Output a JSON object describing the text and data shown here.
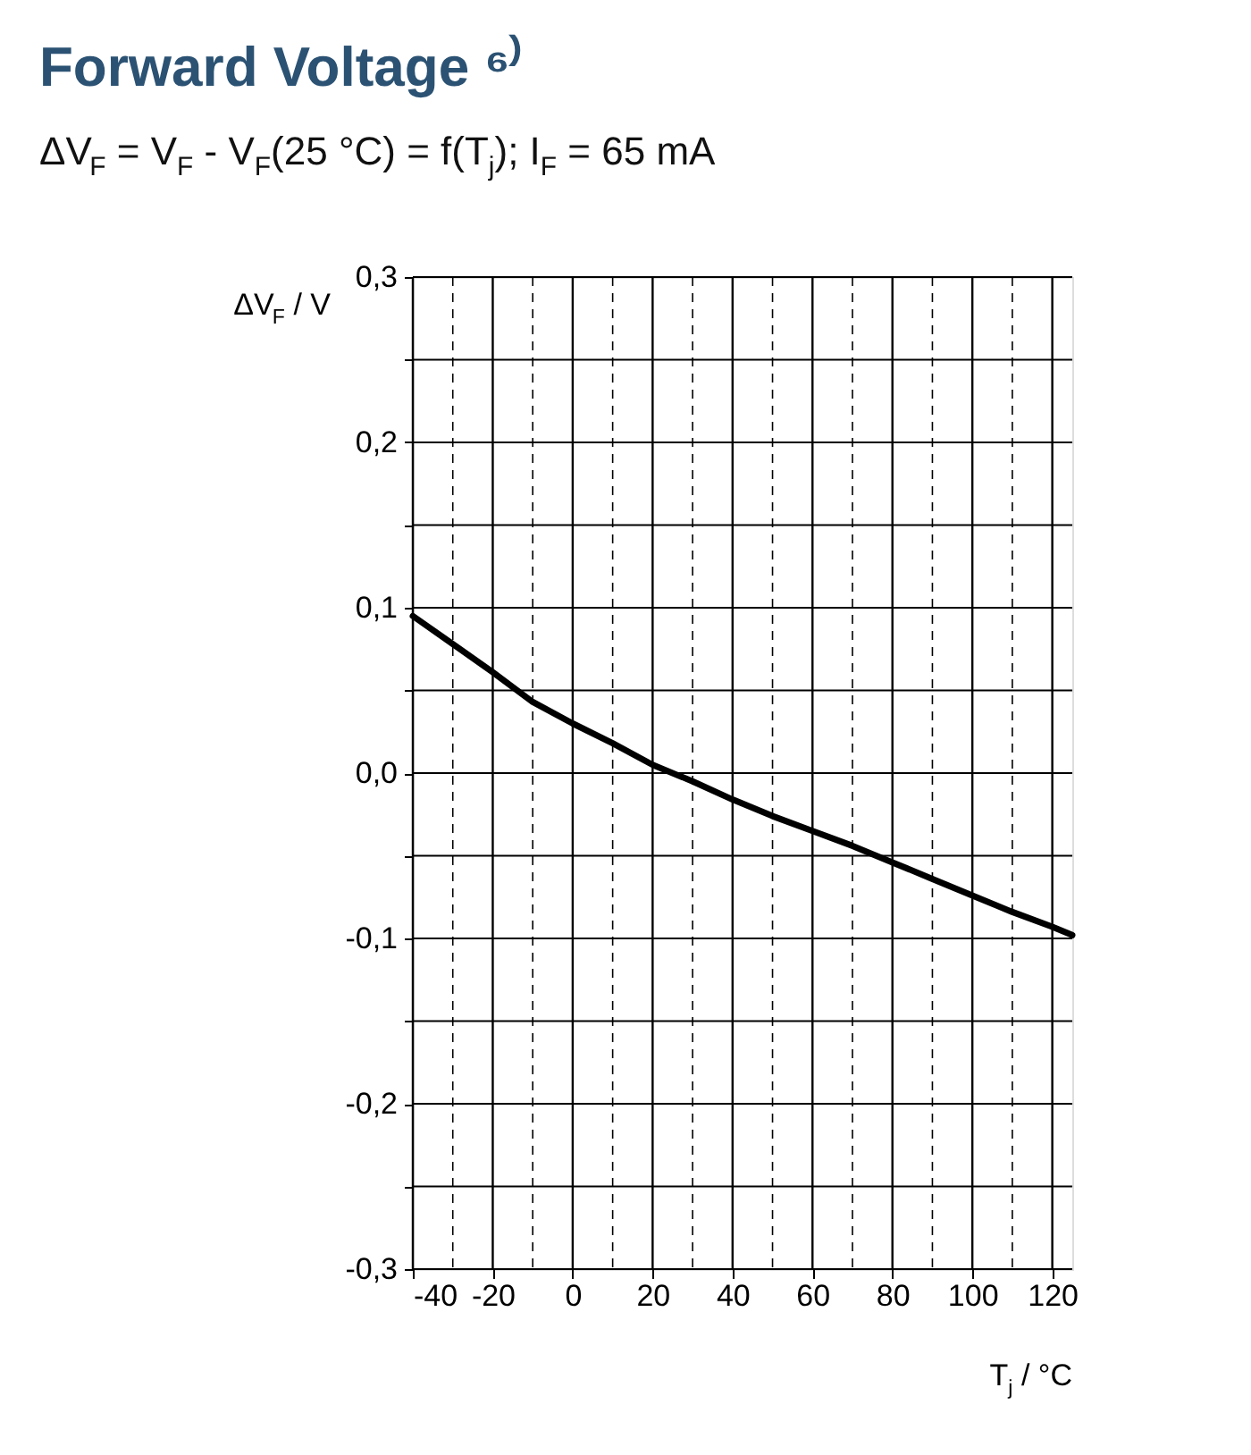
{
  "chart_data": {
    "type": "line",
    "title": "Forward Voltage ⁶⁾",
    "subtitle": "ΔV$_{F}$ = V$_{F}$ - V$_{F}$(25 °C) = f(T$_{j}$); I$_{F}$ = 65 mA",
    "xlabel": "T$_{j}$ / °C",
    "ylabel": "ΔV$_{F}$ / V",
    "x": [
      -40,
      -30,
      -20,
      -10,
      0,
      10,
      20,
      30,
      40,
      50,
      60,
      70,
      80,
      90,
      100,
      110,
      120,
      125
    ],
    "series": [
      {
        "color": "#000000",
        "values": [
          0.095,
          0.078,
          0.061,
          0.043,
          0.03,
          0.018,
          0.005,
          -0.005,
          -0.016,
          -0.026,
          -0.035,
          -0.044,
          -0.054,
          -0.064,
          -0.074,
          -0.084,
          -0.093,
          -0.098
        ]
      }
    ],
    "xlim": [
      -40,
      125
    ],
    "ylim": [
      -0.3,
      0.3
    ],
    "xticks": [
      -40,
      {
        "value": -30,
        "label": null
      },
      -20,
      {
        "value": -10,
        "label": null
      },
      0,
      {
        "value": 10,
        "label": null
      },
      20,
      {
        "value": 30,
        "label": null
      },
      40,
      {
        "value": 50,
        "label": null
      },
      60,
      {
        "value": 70,
        "label": null
      },
      80,
      {
        "value": 90,
        "label": null
      },
      100,
      {
        "value": 110,
        "label": null
      },
      120
    ],
    "yticks": [
      {
        "value": -0.3,
        "label": "-0,3"
      },
      {
        "value": -0.25,
        "label": null
      },
      {
        "value": -0.2,
        "label": "-0,2"
      },
      {
        "value": -0.15,
        "label": null
      },
      {
        "value": -0.1,
        "label": "-0,1"
      },
      {
        "value": -0.05,
        "label": null
      },
      {
        "value": 0,
        "label": "0,0"
      },
      {
        "value": 0.05,
        "label": null
      },
      {
        "value": 0.1,
        "label": "0,1"
      },
      {
        "value": 0.15,
        "label": null
      },
      {
        "value": 0.2,
        "label": "0,2"
      },
      {
        "value": 0.25,
        "label": null
      },
      {
        "value": 0.3,
        "label": "0,3"
      }
    ],
    "grid": true,
    "marker": "none",
    "line_style": "solid"
  }
}
